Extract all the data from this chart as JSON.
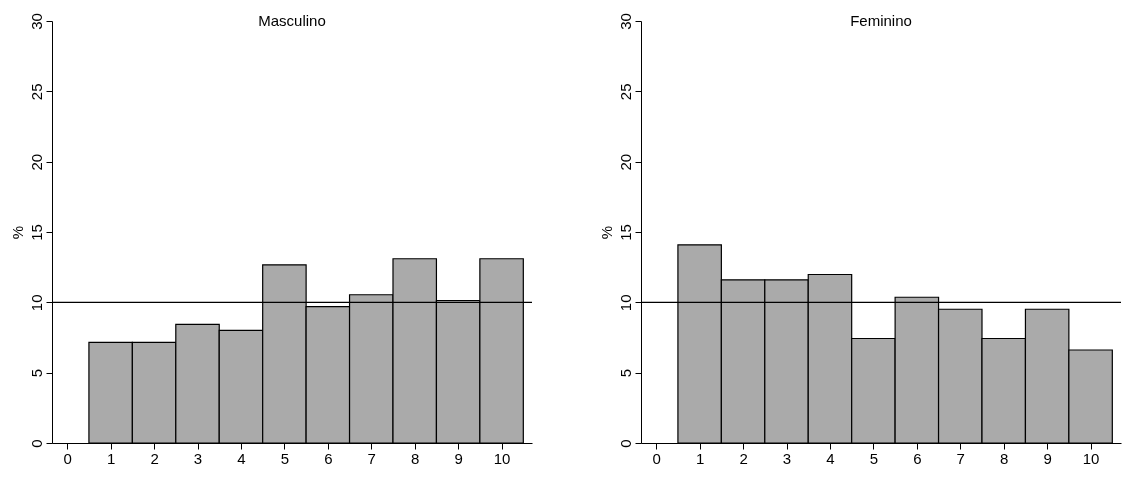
{
  "chart_data": [
    {
      "type": "histogram",
      "title": "Masculino",
      "ylabel": "%",
      "color": "#aaaaaa",
      "bins": [
        0.5,
        1.5,
        2.5,
        3.5,
        4.5,
        5.5,
        6.5,
        7.5,
        8.5,
        9.5,
        10.5
      ],
      "values": [
        7.15,
        7.15,
        8.43,
        8.0,
        12.67,
        9.69,
        10.54,
        13.1,
        10.13,
        13.1
      ],
      "xlim": [
        -0.35,
        10.7
      ],
      "xticks": [
        0,
        1,
        2,
        3,
        4,
        5,
        6,
        7,
        8,
        9,
        10
      ],
      "ylim": [
        0,
        30
      ],
      "yticks": [
        0,
        5,
        10,
        15,
        20,
        25,
        30
      ],
      "ref_lines": [
        {
          "axis": "y",
          "value": 10,
          "label": null
        }
      ]
    },
    {
      "type": "histogram",
      "title": "Feminino",
      "ylabel": "%",
      "color": "#aaaaaa",
      "bins": [
        0.5,
        1.5,
        2.5,
        3.5,
        4.5,
        5.5,
        6.5,
        7.5,
        8.5,
        9.5,
        10.5
      ],
      "values": [
        14.09,
        11.6,
        11.6,
        11.98,
        7.43,
        10.36,
        9.51,
        7.43,
        9.51,
        6.61
      ],
      "xlim": [
        -0.35,
        10.7
      ],
      "xticks": [
        0,
        1,
        2,
        3,
        4,
        5,
        6,
        7,
        8,
        9,
        10
      ],
      "ylim": [
        0,
        30
      ],
      "yticks": [
        0,
        5,
        10,
        15,
        20,
        25,
        30
      ],
      "ref_lines": [
        {
          "axis": "y",
          "value": 10,
          "label": null
        }
      ]
    }
  ]
}
